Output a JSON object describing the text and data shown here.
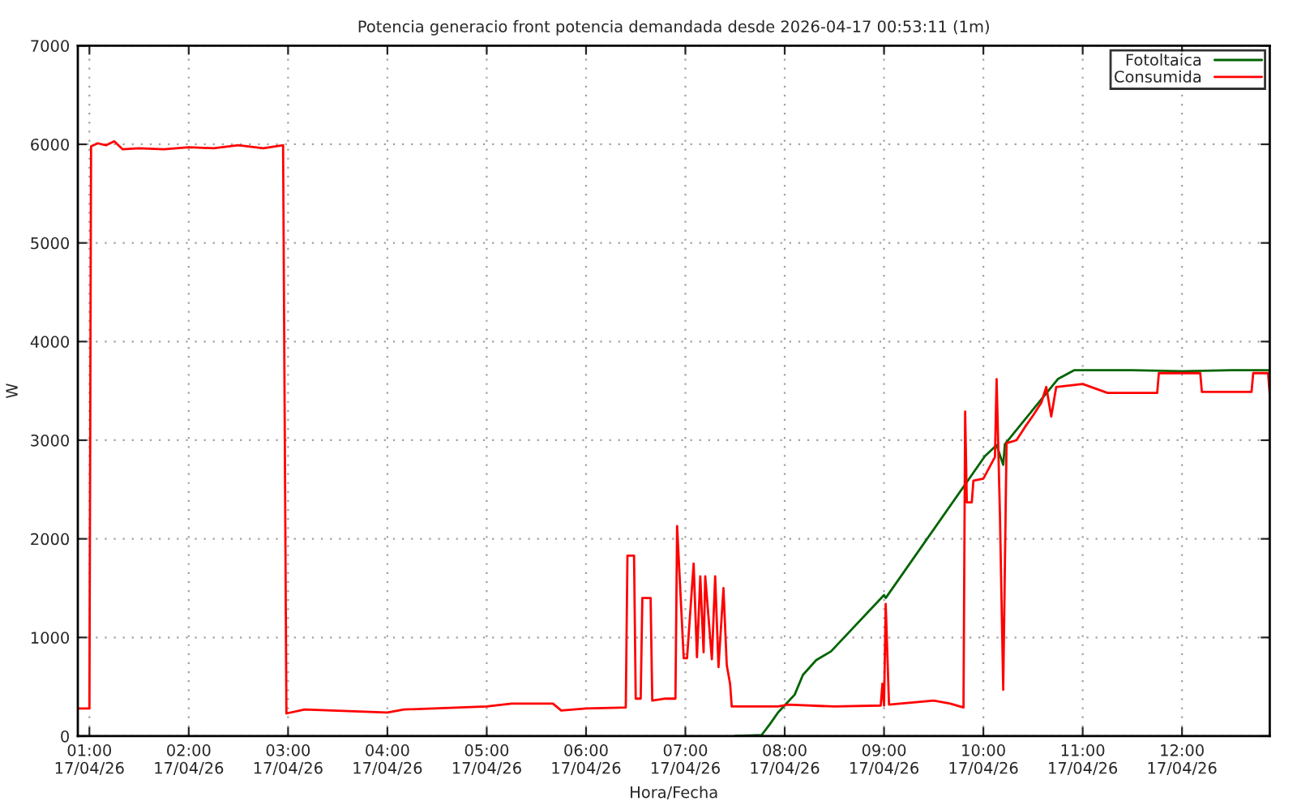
{
  "chart_data": {
    "type": "line",
    "title": "Potencia generacio front potencia demandada desde 2026-04-17 00:53:11 (1m)",
    "xlabel": "Hora/Fecha",
    "ylabel": "W",
    "xlim": [
      "2026-04-17T00:53",
      "2026-04-17T12:53"
    ],
    "xticks": [
      {
        "value": "2026-04-17T01:00",
        "label": "01:00\n17/04/26"
      },
      {
        "value": "2026-04-17T02:00",
        "label": "02:00\n17/04/26"
      },
      {
        "value": "2026-04-17T03:00",
        "label": "03:00\n17/04/26"
      },
      {
        "value": "2026-04-17T04:00",
        "label": "04:00\n17/04/26"
      },
      {
        "value": "2026-04-17T05:00",
        "label": "05:00\n17/04/26"
      },
      {
        "value": "2026-04-17T06:00",
        "label": "06:00\n17/04/26"
      },
      {
        "value": "2026-04-17T07:00",
        "label": "07:00\n17/04/26"
      },
      {
        "value": "2026-04-17T08:00",
        "label": "08:00\n17/04/26"
      },
      {
        "value": "2026-04-17T09:00",
        "label": "09:00\n17/04/26"
      },
      {
        "value": "2026-04-17T10:00",
        "label": "10:00\n17/04/26"
      },
      {
        "value": "2026-04-17T11:00",
        "label": "11:00\n17/04/26"
      },
      {
        "value": "2026-04-17T12:00",
        "label": "12:00\n17/04/26"
      }
    ],
    "ylim": [
      0,
      7000
    ],
    "yticks": [
      0,
      1000,
      2000,
      3000,
      4000,
      5000,
      6000,
      7000
    ],
    "grid": true,
    "legend": "top right",
    "line_style": "solid",
    "marker": "none",
    "series": [
      {
        "name": "Fotoltaica",
        "color": "#006400",
        "x": [
          "2026-04-17T07:30",
          "2026-04-17T07:46",
          "2026-04-17T07:51",
          "2026-04-17T07:56",
          "2026-04-17T08:06",
          "2026-04-17T08:11",
          "2026-04-17T08:19",
          "2026-04-17T08:28",
          "2026-04-17T09:00",
          "2026-04-17T09:01",
          "2026-04-17T10:01",
          "2026-04-17T10:08",
          "2026-04-17T10:12",
          "2026-04-17T10:13",
          "2026-04-17T10:45",
          "2026-04-17T10:55",
          "2026-04-17T11:30",
          "2026-04-17T12:00",
          "2026-04-17T12:30",
          "2026-04-17T12:53"
        ],
        "values": [
          0,
          10,
          120,
          240,
          420,
          620,
          770,
          860,
          1430,
          1400,
          2840,
          2950,
          2750,
          2960,
          3620,
          3710,
          3710,
          3700,
          3710,
          3710
        ]
      },
      {
        "name": "Consumida",
        "color": "#ff0000",
        "x": [
          "2026-04-17T00:53",
          "2026-04-17T01:00",
          "2026-04-17T01:01",
          "2026-04-17T01:05",
          "2026-04-17T01:10",
          "2026-04-17T01:15",
          "2026-04-17T01:20",
          "2026-04-17T01:30",
          "2026-04-17T01:45",
          "2026-04-17T02:00",
          "2026-04-17T02:15",
          "2026-04-17T02:30",
          "2026-04-17T02:45",
          "2026-04-17T02:57",
          "2026-04-17T02:59",
          "2026-04-17T03:10",
          "2026-04-17T04:00",
          "2026-04-17T04:10",
          "2026-04-17T05:00",
          "2026-04-17T05:15",
          "2026-04-17T05:40",
          "2026-04-17T05:45",
          "2026-04-17T06:00",
          "2026-04-17T06:24",
          "2026-04-17T06:25",
          "2026-04-17T06:29",
          "2026-04-17T06:30",
          "2026-04-17T06:33",
          "2026-04-17T06:34",
          "2026-04-17T06:39",
          "2026-04-17T06:40",
          "2026-04-17T06:48",
          "2026-04-17T06:54",
          "2026-04-17T06:55",
          "2026-04-17T06:59",
          "2026-04-17T07:01",
          "2026-04-17T07:05",
          "2026-04-17T07:07",
          "2026-04-17T07:09",
          "2026-04-17T07:11",
          "2026-04-17T07:12",
          "2026-04-17T07:16",
          "2026-04-17T07:18",
          "2026-04-17T07:20",
          "2026-04-17T07:23",
          "2026-04-17T07:25",
          "2026-04-17T07:27",
          "2026-04-17T07:28",
          "2026-04-17T07:56",
          "2026-04-17T08:02",
          "2026-04-17T08:30",
          "2026-04-17T08:58",
          "2026-04-17T08:59",
          "2026-04-17T09:00",
          "2026-04-17T09:01",
          "2026-04-17T09:03",
          "2026-04-17T09:30",
          "2026-04-17T09:40",
          "2026-04-17T09:48",
          "2026-04-17T09:49",
          "2026-04-17T09:50",
          "2026-04-17T09:53",
          "2026-04-17T09:54",
          "2026-04-17T10:00",
          "2026-04-17T10:07",
          "2026-04-17T10:08",
          "2026-04-17T10:10",
          "2026-04-17T10:12",
          "2026-04-17T10:14",
          "2026-04-17T10:20",
          "2026-04-17T10:25",
          "2026-04-17T10:30",
          "2026-04-17T10:35",
          "2026-04-17T10:38",
          "2026-04-17T10:41",
          "2026-04-17T10:44",
          "2026-04-17T11:00",
          "2026-04-17T11:15",
          "2026-04-17T11:45",
          "2026-04-17T11:46",
          "2026-04-17T12:11",
          "2026-04-17T12:12",
          "2026-04-17T12:42",
          "2026-04-17T12:43",
          "2026-04-17T12:52",
          "2026-04-17T12:53"
        ],
        "values": [
          280,
          280,
          5980,
          6010,
          5990,
          6030,
          5950,
          5960,
          5950,
          5970,
          5960,
          5990,
          5960,
          5990,
          230,
          270,
          240,
          270,
          300,
          330,
          330,
          260,
          280,
          290,
          1830,
          1830,
          380,
          380,
          1400,
          1400,
          360,
          380,
          380,
          2130,
          790,
          790,
          1750,
          800,
          1620,
          850,
          1620,
          780,
          1620,
          700,
          1500,
          720,
          530,
          300,
          300,
          320,
          300,
          310,
          530,
          310,
          1340,
          320,
          360,
          330,
          290,
          3290,
          2370,
          2370,
          2590,
          2610,
          2830,
          3620,
          2250,
          470,
          2970,
          3000,
          3130,
          3250,
          3380,
          3540,
          3240,
          3540,
          3570,
          3480,
          3480,
          3680,
          3680,
          3490,
          3490,
          3680,
          3680,
          3460
        ]
      }
    ]
  }
}
